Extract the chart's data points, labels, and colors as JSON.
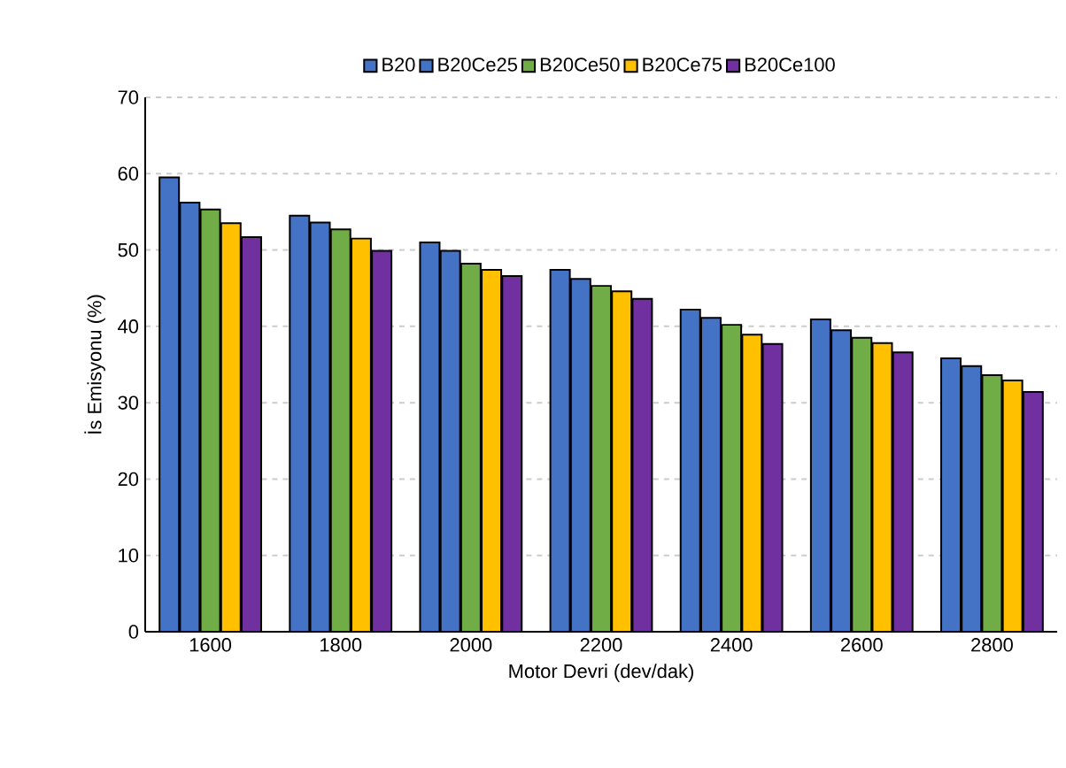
{
  "chart_data": {
    "type": "bar",
    "xlabel": "Motor Devri (dev/dak)",
    "ylabel": "İs Emisyonu (%)",
    "categories": [
      "1600",
      "1800",
      "2000",
      "2200",
      "2400",
      "2600",
      "2800"
    ],
    "series": [
      {
        "name": "B20",
        "color": "#4472c4",
        "values": [
          59.5,
          54.5,
          51.0,
          47.4,
          42.2,
          40.9,
          35.8
        ]
      },
      {
        "name": "B20Ce25",
        "color": "#4472c4",
        "values": [
          56.2,
          53.6,
          49.9,
          46.2,
          41.1,
          39.5,
          34.8
        ]
      },
      {
        "name": "B20Ce50",
        "color": "#70ad47",
        "values": [
          55.3,
          52.7,
          48.2,
          45.3,
          40.2,
          38.5,
          33.6
        ]
      },
      {
        "name": "B20Ce75",
        "color": "#ffc000",
        "values": [
          53.5,
          51.5,
          47.4,
          44.6,
          38.9,
          37.8,
          32.9
        ]
      },
      {
        "name": "B20Ce100",
        "color": "#7030a0",
        "values": [
          51.7,
          49.9,
          46.6,
          43.6,
          37.7,
          36.6,
          31.4
        ]
      }
    ],
    "ylim": [
      0,
      70
    ],
    "yticks": [
      0,
      10,
      20,
      30,
      40,
      50,
      60,
      70
    ],
    "grid": "y",
    "legend": "top"
  }
}
